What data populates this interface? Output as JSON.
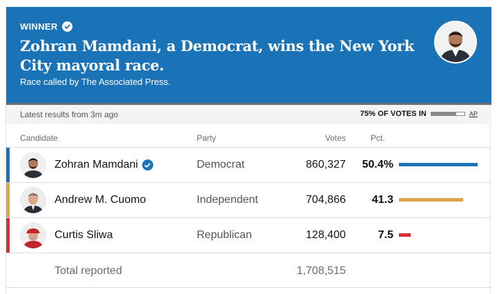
{
  "banner": {
    "winner_label": "WINNER",
    "headline": "Zohran Mamdani, a Democrat, wins the New York City mayoral race.",
    "called_text": "Race called by The Associated Press.",
    "background_color": "#1a73b6"
  },
  "status": {
    "latest_results": "Latest results from 3m ago",
    "votes_in_label": "75% OF VOTES IN",
    "votes_in_fraction": 0.75,
    "source_link": "AP"
  },
  "table": {
    "headers": {
      "candidate": "Candidate",
      "party": "Party",
      "votes": "Votes",
      "pct": "Pct."
    },
    "rows": [
      {
        "name": "Zohran Mamdani",
        "winner": true,
        "party": "Democrat",
        "votes": "860,327",
        "pct": "50.4%",
        "share": 0.504,
        "color": "#1a73b6",
        "avatar_icon": "person-icon"
      },
      {
        "name": "Andrew M. Cuomo",
        "winner": false,
        "party": "Independent",
        "votes": "704,866",
        "pct": "41.3",
        "share": 0.413,
        "color": "#d9a547",
        "avatar_icon": "person-icon"
      },
      {
        "name": "Curtis Sliwa",
        "winner": false,
        "party": "Republican",
        "votes": "128,400",
        "pct": "7.5",
        "share": 0.075,
        "color": "#d0313b",
        "avatar_icon": "person-icon"
      }
    ],
    "total_label": "Total reported",
    "total_votes": "1,708,515"
  }
}
